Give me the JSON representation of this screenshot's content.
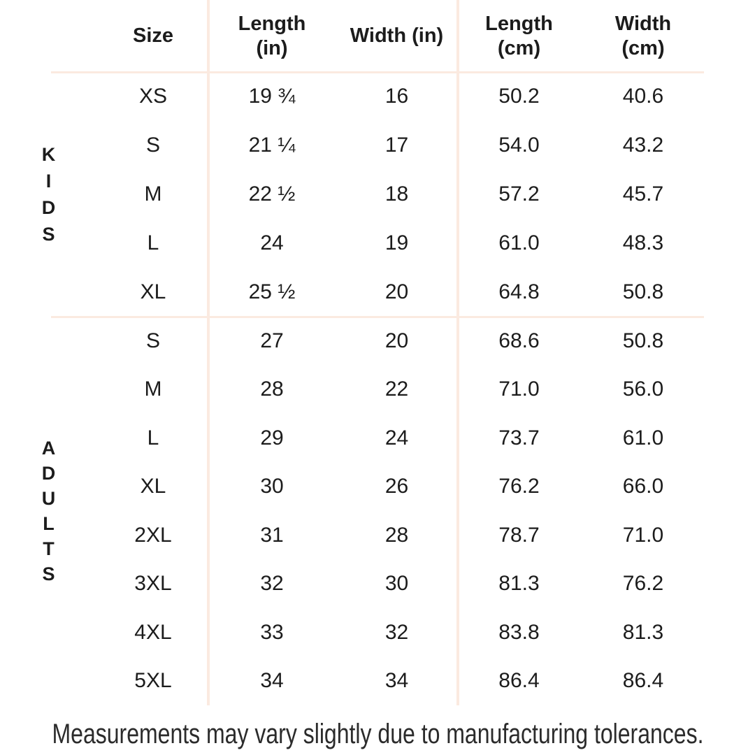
{
  "page": {
    "background": "#ffffff",
    "line_color": "#fbeae0",
    "text_color": "#1c1c1c"
  },
  "table": {
    "columns": [
      "Size",
      "Length (in)",
      "Width (in)",
      "Length (cm)",
      "Width (cm)"
    ],
    "groups": [
      {
        "name": "kids",
        "label": "KIDS",
        "label_stacked": "K\nI\nD\nS",
        "rows": [
          [
            "XS",
            "19 ¾",
            "16",
            "50.2",
            "40.6"
          ],
          [
            "S",
            "21 ¼",
            "17",
            "54.0",
            "43.2"
          ],
          [
            "M",
            "22 ½",
            "18",
            "57.2",
            "45.7"
          ],
          [
            "L",
            "24",
            "19",
            "61.0",
            "48.3"
          ],
          [
            "XL",
            "25 ½",
            "20",
            "64.8",
            "50.8"
          ]
        ]
      },
      {
        "name": "adults",
        "label": "ADULTS",
        "label_stacked": "A\nD\nU\nL\nT\nS",
        "rows": [
          [
            "S",
            "27",
            "20",
            "68.6",
            "50.8"
          ],
          [
            "M",
            "28",
            "22",
            "71.0",
            "56.0"
          ],
          [
            "L",
            "29",
            "24",
            "73.7",
            "61.0"
          ],
          [
            "XL",
            "30",
            "26",
            "76.2",
            "66.0"
          ],
          [
            "2XL",
            "31",
            "28",
            "78.7",
            "71.0"
          ],
          [
            "3XL",
            "32",
            "30",
            "81.3",
            "76.2"
          ],
          [
            "4XL",
            "33",
            "32",
            "83.8",
            "81.3"
          ],
          [
            "5XL",
            "34",
            "34",
            "86.4",
            "86.4"
          ]
        ]
      }
    ]
  },
  "footer": {
    "note": "Measurements may vary slightly due to manufacturing tolerances."
  }
}
